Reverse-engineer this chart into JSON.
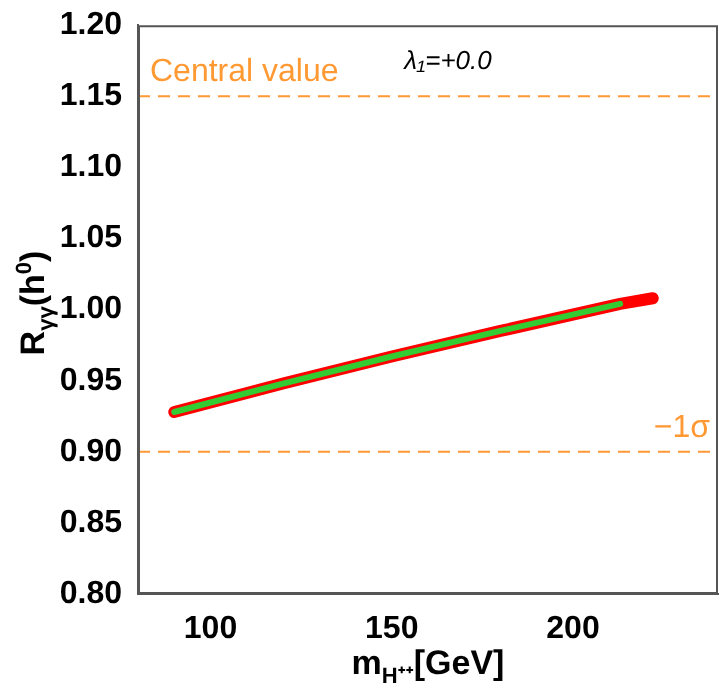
{
  "chart_data": {
    "type": "line",
    "xlabel": "m$_{H⁺⁺}$[GeV]",
    "ylabel": "R$_{γγ}$(h$^{0}$)",
    "xlim": [
      80,
      240
    ],
    "xticks": [
      100,
      150,
      200
    ],
    "ylim": [
      0.8,
      1.2
    ],
    "yticks": [
      {
        "value": 0.8,
        "label": "0.80"
      },
      0.85,
      {
        "value": 0.9,
        "label": "0.90"
      },
      0.95,
      {
        "value": 1.0,
        "label": "1.00"
      },
      1.05,
      {
        "value": 1.1,
        "label": "1.10"
      },
      1.15,
      {
        "value": 1.2,
        "label": "1.20"
      }
    ],
    "series": [
      {
        "color": "#ff0000",
        "x": [
          90,
          120,
          150,
          180,
          213,
          222
        ],
        "values": [
          0.928,
          0.948,
          0.967,
          0.985,
          1.004,
          1.008
        ]
      },
      {
        "color": "#33cc33",
        "x": [
          90,
          120,
          150,
          180,
          213
        ],
        "values": [
          0.928,
          0.948,
          0.967,
          0.985,
          1.004
        ]
      }
    ],
    "ref_lines": [
      {
        "axis": "y",
        "value": 1.15,
        "label": "Central value",
        "color": "#ff9933",
        "line_style": "dashed"
      },
      {
        "axis": "y",
        "value": 0.9,
        "label": "−1σ",
        "color": "#ff9933",
        "line_style": "dashed"
      }
    ],
    "annotations": [
      "λ₁=+0.0"
    ],
    "grid": false,
    "legend": false,
    "marker": "none",
    "line_style": "solid"
  }
}
